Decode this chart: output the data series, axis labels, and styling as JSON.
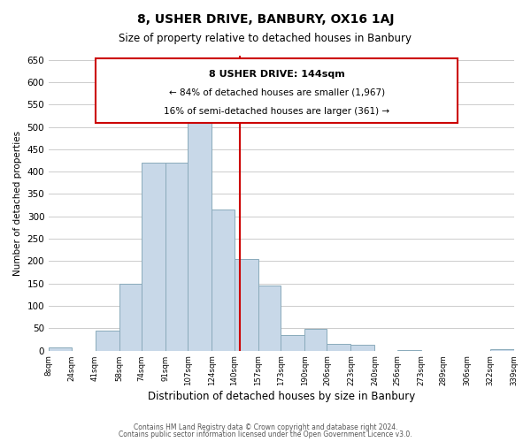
{
  "title": "8, USHER DRIVE, BANBURY, OX16 1AJ",
  "subtitle": "Size of property relative to detached houses in Banbury",
  "xlabel": "Distribution of detached houses by size in Banbury",
  "ylabel": "Number of detached properties",
  "bar_color": "#c8d8e8",
  "bar_edge_color": "#8aaabb",
  "bin_edges": [
    8,
    24,
    41,
    58,
    74,
    91,
    107,
    124,
    140,
    157,
    173,
    190,
    206,
    223,
    240,
    256,
    273,
    289,
    306,
    322,
    339
  ],
  "bin_labels": [
    "8sqm",
    "24sqm",
    "41sqm",
    "58sqm",
    "74sqm",
    "91sqm",
    "107sqm",
    "124sqm",
    "140sqm",
    "157sqm",
    "173sqm",
    "190sqm",
    "206sqm",
    "223sqm",
    "240sqm",
    "256sqm",
    "273sqm",
    "289sqm",
    "306sqm",
    "322sqm",
    "339sqm"
  ],
  "bar_heights": [
    8,
    0,
    44,
    150,
    420,
    420,
    530,
    315,
    205,
    145,
    35,
    48,
    15,
    13,
    0,
    2,
    0,
    0,
    0,
    3
  ],
  "property_line_x": 144,
  "property_line_color": "#cc0000",
  "ylim": [
    0,
    660
  ],
  "yticks": [
    0,
    50,
    100,
    150,
    200,
    250,
    300,
    350,
    400,
    450,
    500,
    550,
    600,
    650
  ],
  "annotation_title": "8 USHER DRIVE: 144sqm",
  "annotation_line1": "← 84% of detached houses are smaller (1,967)",
  "annotation_line2": "16% of semi-detached houses are larger (361) →",
  "annotation_box_color": "#ffffff",
  "annotation_box_edge": "#cc0000",
  "footnote1": "Contains HM Land Registry data © Crown copyright and database right 2024.",
  "footnote2": "Contains public sector information licensed under the Open Government Licence v3.0.",
  "background_color": "#ffffff",
  "grid_color": "#cccccc",
  "title_fontsize": 10,
  "subtitle_fontsize": 8.5,
  "ylabel_fontsize": 7.5,
  "xlabel_fontsize": 8.5,
  "ytick_fontsize": 7.5,
  "xtick_fontsize": 6.2,
  "footnote_fontsize": 5.5
}
